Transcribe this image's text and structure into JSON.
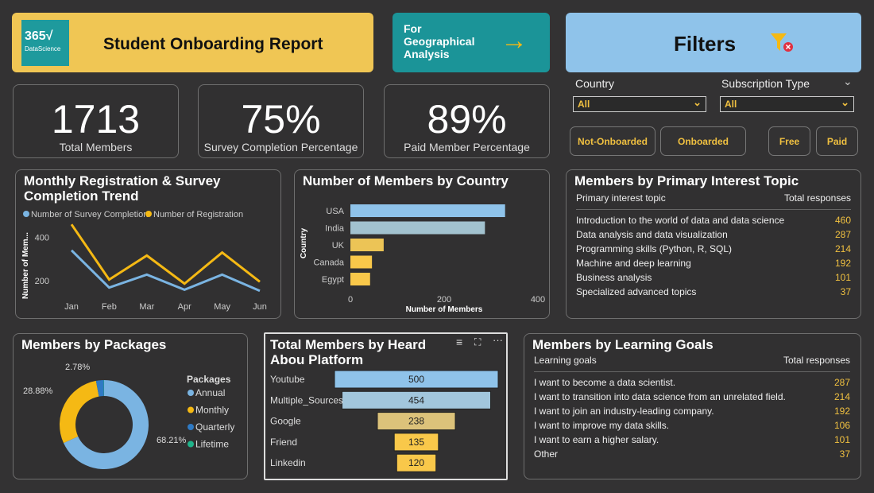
{
  "header": {
    "logo_text": "365√ DataScience",
    "title": "Student Onboarding Report",
    "geo_button": "For Geographical Analysis",
    "filters_title": "Filters"
  },
  "kpis": [
    {
      "value": "1713",
      "label": "Total Members"
    },
    {
      "value": "75%",
      "label": "Survey Completion Percentage"
    },
    {
      "value": "89%",
      "label": "Paid Member Percentage"
    }
  ],
  "filters": {
    "country_label": "Country",
    "country_value": "All",
    "subscription_label": "Subscription Type",
    "subscription_value": "All",
    "buttons": [
      "Not-Onboarded",
      "Onboarded",
      "Free",
      "Paid"
    ]
  },
  "colors": {
    "accent_yellow": "#f0c24f",
    "teal": "#1b9498",
    "light_blue": "#8fc3ea",
    "text_yellow": "#f0c040"
  },
  "chart_data": [
    {
      "type": "line",
      "title": "Monthly Registration & Survey Completion Trend",
      "ylabel": "Number of Mem...",
      "categories": [
        "Jan",
        "Feb",
        "Mar",
        "Apr",
        "May",
        "Jun"
      ],
      "yticks": [
        200,
        400
      ],
      "ylim": [
        130,
        490
      ],
      "series": [
        {
          "name": "Number of Survey Completion",
          "color": "#7ab4e2",
          "values": [
            340,
            168,
            228,
            158,
            228,
            153
          ]
        },
        {
          "name": "Number of Registration",
          "color": "#f5b914",
          "values": [
            460,
            205,
            316,
            186,
            330,
            195
          ]
        }
      ]
    },
    {
      "type": "bar",
      "title": "Number of Members by Country",
      "xlabel": "Number of Members",
      "ylabel": "Country",
      "categories": [
        "USA",
        "India",
        "UK",
        "Canada",
        "Egypt"
      ],
      "values": [
        330,
        287,
        71,
        46,
        42
      ],
      "xlim": [
        0,
        400
      ],
      "xticks": [
        0,
        200,
        400
      ],
      "colors": [
        "#8fc3ea",
        "#a2c2cf",
        "#ecc456",
        "#f9c84a",
        "#f9c84a"
      ]
    },
    {
      "type": "pie",
      "title": "Members by Packages",
      "legend_title": "Packages",
      "categories": [
        "Annual",
        "Monthly",
        "Quarterly",
        "Lifetime"
      ],
      "values": [
        68.21,
        28.88,
        2.78,
        0.13
      ],
      "labels": [
        "68.21%",
        "28.88%",
        "2.78%",
        ""
      ],
      "colors": [
        "#7ab4e2",
        "#f5b914",
        "#2f7ac4",
        "#1fb38a"
      ]
    },
    {
      "type": "bar",
      "title": "Total Members by Heard Abou Platform",
      "categories": [
        "Youtube",
        "Multiple_Sources",
        "Google",
        "Friend",
        "Linkedin"
      ],
      "values": [
        500,
        454,
        238,
        135,
        120
      ],
      "colors": [
        "#8fc3ea",
        "#a2c6dc",
        "#dcc27a",
        "#f9c84a",
        "#f9c84a"
      ]
    }
  ],
  "interest_table": {
    "title": "Members by Primary Interest Topic",
    "col1": "Primary interest topic",
    "col2": "Total responses",
    "rows": [
      [
        "Introduction to the world of data and data science",
        "460"
      ],
      [
        "Data analysis and data visualization",
        "287"
      ],
      [
        "Programming skills (Python, R, SQL)",
        "214"
      ],
      [
        "Machine and deep learning",
        "192"
      ],
      [
        "Business analysis",
        "101"
      ],
      [
        "Specialized advanced topics",
        "37"
      ]
    ]
  },
  "goals_table": {
    "title": "Members by Learning Goals",
    "col1": "Learning goals",
    "col2": "Total responses",
    "rows": [
      [
        "I want to become a data scientist.",
        "287"
      ],
      [
        "I want to transition into data science from an unrelated field.",
        "214"
      ],
      [
        "I want to join an industry-leading company.",
        "192"
      ],
      [
        "I want to improve my data skills.",
        "106"
      ],
      [
        "I want to earn a higher salary.",
        "101"
      ],
      [
        "Other",
        "37"
      ]
    ]
  }
}
